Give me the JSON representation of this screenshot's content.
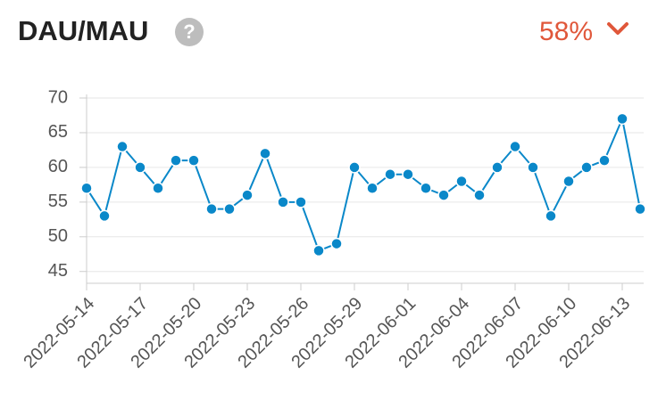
{
  "chart_data": {
    "type": "line",
    "title": "DAU/MAU",
    "summary": "58%",
    "x": [
      "2022-05-14",
      "2022-05-15",
      "2022-05-16",
      "2022-05-17",
      "2022-05-18",
      "2022-05-19",
      "2022-05-20",
      "2022-05-21",
      "2022-05-22",
      "2022-05-23",
      "2022-05-24",
      "2022-05-25",
      "2022-05-26",
      "2022-05-27",
      "2022-05-28",
      "2022-05-29",
      "2022-05-30",
      "2022-05-31",
      "2022-06-01",
      "2022-06-02",
      "2022-06-03",
      "2022-06-04",
      "2022-06-05",
      "2022-06-06",
      "2022-06-07",
      "2022-06-08",
      "2022-06-09",
      "2022-06-10",
      "2022-06-11",
      "2022-06-12",
      "2022-06-13",
      "2022-06-14"
    ],
    "values": [
      57,
      53,
      63,
      60,
      57,
      61,
      61,
      54,
      54,
      56,
      62,
      55,
      55,
      48,
      49,
      60,
      57,
      59,
      59,
      57,
      56,
      58,
      56,
      60,
      63,
      60,
      53,
      58,
      60,
      61,
      67,
      54
    ],
    "color": "#0a88c9",
    "xticks": [
      "2022-05-14",
      "2022-05-17",
      "2022-05-20",
      "2022-05-23",
      "2022-05-26",
      "2022-05-29",
      "2022-06-01",
      "2022-06-04",
      "2022-06-07",
      "2022-06-10",
      "2022-06-13"
    ],
    "ylim": [
      43.3,
      70
    ],
    "yticks": [
      45,
      50,
      55,
      60,
      65,
      70
    ],
    "grid": true
  }
}
